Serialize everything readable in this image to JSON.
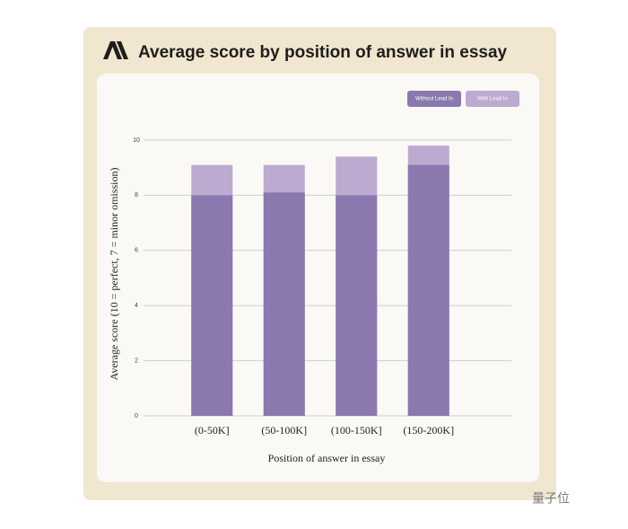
{
  "chart_data": {
    "type": "bar",
    "title": "Average score by position of answer in essay",
    "xlabel": "Position of answer in essay",
    "ylabel": "Average score (10 = perfect, 7 = minor omission)",
    "categories": [
      "(0-50K]",
      "(50-100K]",
      "(100-150K]",
      "(150-200K]"
    ],
    "series": [
      {
        "name": "Without Lead In",
        "color": "#8a78ae",
        "values": [
          8.0,
          8.1,
          8.0,
          9.1
        ]
      },
      {
        "name": "With Lead In",
        "color": "#bcaad0",
        "values": [
          9.1,
          9.1,
          9.4,
          9.8
        ]
      }
    ],
    "ylim": [
      0,
      10
    ],
    "yticks": [
      0,
      2,
      4,
      6,
      8,
      10
    ],
    "grid": true,
    "legend": "upper right",
    "watermark": "量子位"
  }
}
